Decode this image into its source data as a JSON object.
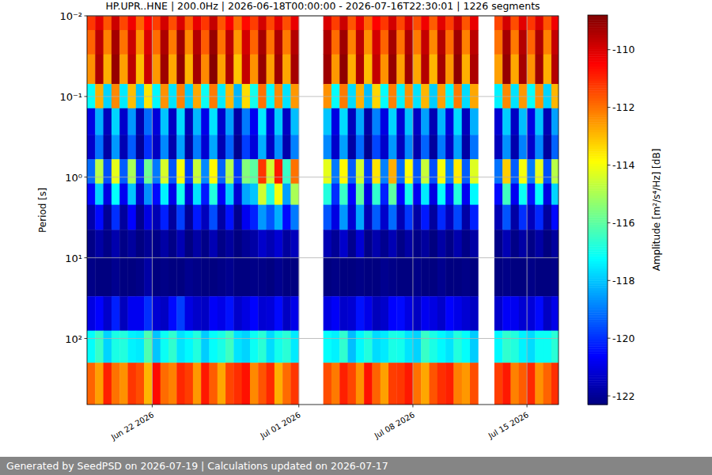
{
  "chart_data": {
    "type": "heatmap",
    "title": "HP.UPR..HNE | 200.0Hz | 2026-06-18T00:00:00 - 2026-07-16T22:30:01 | 1226 segments",
    "ylabel": "Period [s]",
    "log": "y",
    "grid": true,
    "xlim": [
      "2026-06-18T00:00:00",
      "2026-07-16T22:30:01"
    ],
    "xticks": [
      {
        "value": "2026-06-22T00:00:00",
        "label": "Jun 22 2026"
      },
      {
        "value": "2026-07-01T00:00:00",
        "label": "Jul 01 2026"
      },
      {
        "value": "2026-07-08T00:00:00",
        "label": "Jul 08 2026"
      },
      {
        "value": "2026-07-15T00:00:00",
        "label": "Jul 15 2026"
      }
    ],
    "ylim": [
      0.01,
      660
    ],
    "yticks": [
      {
        "value": 0.01,
        "label": "10⁻²"
      },
      {
        "value": 0.1,
        "label": "10⁻¹"
      },
      {
        "value": 1,
        "label": "10⁰"
      },
      {
        "value": 10,
        "label": "10¹"
      },
      {
        "value": 100,
        "label": "10²"
      }
    ],
    "x_edges": [
      "2026-06-18T00:00:00",
      "2026-06-18T12:00:00",
      "2026-06-19T00:00:00",
      "2026-06-19T12:00:00",
      "2026-06-20T00:00:00",
      "2026-06-20T12:00:00",
      "2026-06-21T00:00:00",
      "2026-06-21T12:00:00",
      "2026-06-22T00:00:00",
      "2026-06-22T12:00:00",
      "2026-06-23T00:00:00",
      "2026-06-23T12:00:00",
      "2026-06-24T00:00:00",
      "2026-06-24T12:00:00",
      "2026-06-25T00:00:00",
      "2026-06-25T12:00:00",
      "2026-06-26T00:00:00",
      "2026-06-26T12:00:00",
      "2026-06-27T00:00:00",
      "2026-06-27T12:00:00",
      "2026-06-28T00:00:00",
      "2026-06-28T12:00:00",
      "2026-06-29T00:00:00",
      "2026-06-29T12:00:00",
      "2026-06-30T00:00:00",
      "2026-06-30T12:00:00",
      "2026-07-01T00:00:00",
      "2026-07-01T12:00:00",
      "2026-07-02T00:00:00",
      "2026-07-02T12:00:00",
      "2026-07-03T00:00:00",
      "2026-07-03T12:00:00",
      "2026-07-04T00:00:00",
      "2026-07-04T12:00:00",
      "2026-07-05T00:00:00",
      "2026-07-05T12:00:00",
      "2026-07-06T00:00:00",
      "2026-07-06T12:00:00",
      "2026-07-07T00:00:00",
      "2026-07-07T12:00:00",
      "2026-07-08T00:00:00",
      "2026-07-08T12:00:00",
      "2026-07-09T00:00:00",
      "2026-07-09T12:00:00",
      "2026-07-10T00:00:00",
      "2026-07-10T12:00:00",
      "2026-07-11T00:00:00",
      "2026-07-11T12:00:00",
      "2026-07-12T00:00:00",
      "2026-07-12T12:00:00",
      "2026-07-13T00:00:00",
      "2026-07-13T12:00:00",
      "2026-07-14T00:00:00",
      "2026-07-14T12:00:00",
      "2026-07-15T00:00:00",
      "2026-07-15T12:00:00",
      "2026-07-16T00:00:00",
      "2026-07-16T12:00:00",
      "2026-07-17T00:00:00"
    ],
    "y_edges": [
      0.01,
      0.015,
      0.03,
      0.07,
      0.14,
      0.3,
      0.6,
      1.2,
      2.2,
      4.5,
      10,
      30,
      80,
      200,
      660
    ],
    "cells": [
      [
        -111.2,
        -110.1,
        -111.6,
        -109.8,
        -111.4,
        -110.3,
        -111.8,
        -110.5,
        -111.3,
        -109.9,
        -111.5,
        -110.0,
        -111.7,
        -110.2,
        -111.2,
        -109.7,
        -111.6,
        -110.4,
        -111.9,
        -110.6,
        -111.3,
        -109.9,
        -111.4,
        -110.1,
        -111.5,
        -110.2,
        null,
        null,
        null,
        -110.0,
        -111.3,
        -109.8,
        -111.6,
        -110.2,
        -111.8,
        -110.5,
        -111.2,
        -109.9,
        -111.4,
        -110.0,
        -111.5,
        -110.3,
        -111.7,
        -110.1,
        -111.3,
        -109.8,
        -111.6,
        -110.2,
        null,
        null,
        -111.4,
        -109.9,
        -111.5,
        -110.1,
        -111.2,
        -110.0,
        -111.6,
        -110.3
      ],
      [
        -111.8,
        -109.6,
        -112.2,
        -109.3,
        -112.0,
        -109.8,
        -112.4,
        -110.0,
        -111.9,
        -109.4,
        -112.1,
        -109.2,
        -112.3,
        -109.5,
        -111.7,
        -109.1,
        -112.0,
        -109.6,
        -112.5,
        -109.9,
        -111.8,
        -109.3,
        -112.0,
        -109.4,
        -112.1,
        -109.5,
        null,
        null,
        null,
        -109.4,
        -111.9,
        -109.2,
        -112.2,
        -109.6,
        -112.4,
        -109.9,
        -111.8,
        -109.3,
        -112.0,
        -109.4,
        -112.1,
        -109.7,
        -112.3,
        -109.5,
        -111.9,
        -109.2,
        -112.2,
        -109.6,
        null,
        null,
        -112.0,
        -109.3,
        -112.1,
        -109.5,
        -111.8,
        -109.4,
        -112.2,
        -109.7
      ],
      [
        -112.4,
        -109.4,
        -112.8,
        -109.1,
        -112.6,
        -109.6,
        -113.0,
        -109.8,
        -112.5,
        -109.2,
        -112.7,
        -109.0,
        -112.9,
        -109.3,
        -112.3,
        -108.9,
        -112.6,
        -109.4,
        -113.1,
        -109.7,
        -112.4,
        -109.1,
        -112.6,
        -109.2,
        -112.7,
        -109.3,
        null,
        null,
        null,
        -109.2,
        -112.5,
        -109.0,
        -112.8,
        -109.4,
        -113.0,
        -109.7,
        -112.4,
        -109.1,
        -112.6,
        -109.2,
        -112.7,
        -109.5,
        -112.9,
        -109.3,
        -112.5,
        -109.0,
        -112.8,
        -109.4,
        null,
        null,
        -112.6,
        -109.1,
        -112.7,
        -109.3,
        -112.4,
        -109.2,
        -112.8,
        -109.5
      ],
      [
        -117.2,
        -112.8,
        -117.8,
        -112.3,
        -117.5,
        -113.0,
        -118.0,
        -113.5,
        -117.3,
        -112.4,
        -117.6,
        -112.2,
        -117.9,
        -112.7,
        -117.1,
        -112.1,
        -117.5,
        -112.9,
        -118.2,
        -113.4,
        -117.0,
        -112.0,
        -117.3,
        -112.3,
        -117.6,
        -112.5,
        null,
        null,
        null,
        -112.4,
        -117.2,
        -112.1,
        -117.7,
        -112.8,
        -118.1,
        -113.3,
        -117.2,
        -112.2,
        -117.4,
        -112.4,
        -117.6,
        -112.9,
        -117.9,
        -112.6,
        -117.3,
        -112.1,
        -117.7,
        -112.7,
        null,
        null,
        -117.4,
        -112.3,
        -117.6,
        -112.5,
        -117.2,
        -112.4,
        -117.8,
        -112.9
      ],
      [
        -121.0,
        -118.3,
        -121.5,
        -117.8,
        -121.3,
        -118.6,
        -121.7,
        -119.2,
        -121.1,
        -118.0,
        -121.4,
        -117.7,
        -121.6,
        -118.2,
        -120.9,
        -117.6,
        -121.3,
        -118.5,
        -121.8,
        -119.0,
        -120.8,
        -117.5,
        -121.1,
        -117.9,
        -121.4,
        -118.1,
        null,
        null,
        null,
        -118.0,
        -121.0,
        -117.7,
        -121.5,
        -118.4,
        -121.8,
        -118.9,
        -121.0,
        -117.8,
        -121.2,
        -118.0,
        -121.4,
        -118.5,
        -121.6,
        -118.2,
        -121.1,
        -117.7,
        -121.5,
        -118.3,
        null,
        null,
        -121.2,
        -117.9,
        -121.4,
        -118.1,
        -121.0,
        -118.0,
        -121.6,
        -118.5
      ],
      [
        -121.3,
        -119.1,
        -121.8,
        -118.6,
        -121.6,
        -119.4,
        -122.0,
        -120.0,
        -121.4,
        -118.8,
        -121.7,
        -118.5,
        -121.9,
        -119.0,
        -121.2,
        -118.4,
        -121.6,
        -119.3,
        -122.1,
        -119.8,
        -121.1,
        -118.3,
        -121.4,
        -118.7,
        -121.7,
        -118.9,
        null,
        null,
        null,
        -118.8,
        -121.3,
        -118.5,
        -121.8,
        -119.2,
        -122.1,
        -119.7,
        -121.3,
        -118.6,
        -121.5,
        -118.8,
        -121.7,
        -119.3,
        -121.9,
        -119.0,
        -121.4,
        -118.5,
        -121.8,
        -119.1,
        null,
        null,
        -121.5,
        -118.7,
        -121.7,
        -118.9,
        -121.3,
        -118.8,
        -121.9,
        -119.3
      ],
      [
        -119.2,
        -114.8,
        -119.6,
        -114.2,
        -119.4,
        -115.0,
        -120.0,
        -115.8,
        -119.0,
        -114.4,
        -119.5,
        -114.0,
        -119.8,
        -114.6,
        -118.8,
        -113.8,
        -119.3,
        -114.9,
        -119.9,
        -115.5,
        -116.0,
        -111.2,
        -114.5,
        -110.8,
        -116.5,
        -112.0,
        null,
        null,
        null,
        -114.2,
        -119.0,
        -113.8,
        -119.4,
        -114.5,
        -119.8,
        -113.5,
        -118.9,
        -112.8,
        -119.2,
        -113.9,
        -119.5,
        -114.6,
        -119.6,
        -114.0,
        -119.0,
        -113.6,
        -119.4,
        -114.3,
        null,
        null,
        -119.1,
        -113.2,
        -119.4,
        -114.0,
        -119.0,
        -114.2,
        -119.6,
        -114.8
      ],
      [
        -120.6,
        -117.8,
        -121.0,
        -117.2,
        -120.8,
        -118.0,
        -121.3,
        -118.7,
        -120.5,
        -117.4,
        -120.9,
        -117.0,
        -121.1,
        -117.6,
        -120.3,
        -116.8,
        -120.7,
        -117.9,
        -121.2,
        -118.4,
        -118.0,
        -114.5,
        -116.8,
        -114.0,
        -118.5,
        -115.0,
        null,
        null,
        null,
        -116.8,
        -120.0,
        -116.5,
        -120.6,
        -116.0,
        -121.0,
        -116.6,
        -120.2,
        -116.0,
        -120.6,
        -117.0,
        -120.8,
        -117.5,
        -121.0,
        -117.2,
        -120.4,
        -116.8,
        -120.8,
        -117.3,
        null,
        null,
        -120.5,
        -116.4,
        -120.8,
        -117.1,
        -120.4,
        -117.2,
        -121.0,
        -117.8
      ],
      [
        -121.7,
        -120.5,
        -122.0,
        -120.0,
        -121.9,
        -120.6,
        -122.1,
        -121.0,
        -121.6,
        -120.2,
        -121.9,
        -119.8,
        -122.0,
        -120.3,
        -121.5,
        -119.6,
        -121.8,
        -120.4,
        -122.1,
        -120.8,
        -120.2,
        -118.6,
        -119.5,
        -118.3,
        -120.5,
        -119.0,
        null,
        null,
        null,
        -119.5,
        -121.0,
        -118.6,
        -121.2,
        -118.4,
        -121.6,
        -119.4,
        -121.3,
        -119.2,
        -121.6,
        -119.9,
        -121.8,
        -120.3,
        -121.9,
        -120.1,
        -121.5,
        -119.7,
        -121.8,
        -120.2,
        null,
        null,
        -121.6,
        -119.5,
        -121.8,
        -120.0,
        -121.5,
        -120.1,
        -121.9,
        -120.5
      ],
      [
        -122.2,
        -121.8,
        -122.2,
        -121.7,
        -122.2,
        -121.9,
        -122.3,
        -122.0,
        -122.2,
        -121.8,
        -122.2,
        -121.6,
        -122.3,
        -121.8,
        -122.2,
        -121.6,
        -122.2,
        -121.9,
        -122.3,
        -122.0,
        -121.8,
        -121.3,
        -121.6,
        -121.2,
        -121.9,
        -121.5,
        null,
        null,
        null,
        -121.6,
        -122.0,
        -121.3,
        -122.1,
        -121.2,
        -122.2,
        -121.7,
        -122.1,
        -121.6,
        -122.2,
        -121.8,
        -122.2,
        -121.9,
        -122.3,
        -121.8,
        -122.2,
        -121.7,
        -122.2,
        -121.8,
        null,
        null,
        -122.2,
        -121.6,
        -122.2,
        -121.8,
        -122.2,
        -121.8,
        -122.3,
        -121.9
      ],
      [
        -122.2,
        -122.3,
        -122.3,
        -122.1,
        -122.3,
        -122.3,
        -122.2,
        -121.8,
        -122.3,
        -122.2,
        -122.3,
        -122.3,
        -122.1,
        -122.2,
        -122.3,
        -122.3,
        -122.2,
        -122.1,
        -122.3,
        -122.3,
        -122.2,
        -122.2,
        -122.3,
        -122.1,
        -122.3,
        -122.3,
        null,
        null,
        null,
        -122.3,
        -122.2,
        -122.3,
        -122.3,
        -122.2,
        -122.3,
        -122.3,
        -122.1,
        -122.2,
        -122.3,
        -122.3,
        -122.2,
        -122.3,
        -122.3,
        -122.1,
        -122.3,
        -122.3,
        -122.2,
        -122.3,
        null,
        null,
        -122.3,
        -122.2,
        -122.3,
        -122.3,
        -122.2,
        -122.3,
        -122.3,
        -122.2
      ],
      [
        -121.0,
        -120.6,
        -121.3,
        -120.2,
        -121.5,
        -120.8,
        -120.8,
        -120.0,
        -121.2,
        -121.4,
        -120.5,
        -119.8,
        -121.0,
        -121.3,
        -121.4,
        -120.7,
        -120.9,
        -120.4,
        -121.3,
        -121.0,
        -120.6,
        -121.2,
        -121.1,
        -120.5,
        -121.4,
        -120.9,
        null,
        null,
        null,
        -121.0,
        -120.7,
        -121.3,
        -121.2,
        -120.4,
        -120.9,
        -121.5,
        -121.3,
        -120.6,
        -120.5,
        -121.0,
        -121.4,
        -120.8,
        -121.0,
        -121.3,
        -120.6,
        -120.9,
        -121.2,
        -121.4,
        null,
        null,
        -121.3,
        -120.7,
        -120.8,
        -121.2,
        -121.1,
        -120.5,
        -121.4,
        -120.9
      ],
      [
        -117.2,
        -116.5,
        -117.8,
        -116.9,
        -116.8,
        -117.4,
        -117.5,
        -116.2,
        -118.0,
        -117.1,
        -116.6,
        -117.6,
        -117.3,
        -116.8,
        -117.9,
        -117.2,
        -116.9,
        -116.4,
        -117.6,
        -117.8,
        -117.1,
        -116.7,
        -117.7,
        -117.0,
        -116.7,
        -117.5,
        null,
        null,
        null,
        -117.2,
        -117.4,
        -116.6,
        -118.1,
        -117.3,
        -116.8,
        -117.7,
        -117.5,
        -116.9,
        -117.0,
        -117.6,
        -117.8,
        -116.5,
        -116.9,
        -117.3,
        -117.6,
        -116.8,
        -117.2,
        -117.9,
        null,
        null,
        -117.3,
        -116.6,
        -116.8,
        -117.4,
        -117.7,
        -117.1,
        -117.1,
        -116.7
      ],
      [
        -111.8,
        -112.6,
        -110.9,
        -112.0,
        -112.4,
        -111.2,
        -111.5,
        -112.9,
        -110.6,
        -111.9,
        -112.2,
        -111.0,
        -111.3,
        -112.5,
        -110.8,
        -111.7,
        -112.7,
        -111.4,
        -111.1,
        -110.7,
        -112.3,
        -111.6,
        -111.0,
        -112.8,
        -111.9,
        -111.2,
        null,
        null,
        null,
        -111.5,
        -112.1,
        -110.9,
        -111.4,
        -112.4,
        -110.7,
        -111.8,
        -112.6,
        -111.3,
        -111.2,
        -110.8,
        -112.0,
        -112.7,
        -111.6,
        -111.1,
        -110.9,
        -112.2,
        -112.5,
        -111.5,
        null,
        null,
        -111.3,
        -110.8,
        -112.2,
        -111.7,
        -111.0,
        -112.4,
        -111.8,
        -111.1
      ]
    ],
    "colorbar": {
      "range": [
        -122.3,
        -108.8
      ],
      "ticks": [
        -122,
        -120,
        -118,
        -116,
        -114,
        -112,
        -110
      ],
      "label": "Amplitude [m²/s⁴/Hz] [dB]"
    }
  },
  "footer": {
    "text": "Generated by SeedPSD on 2026-07-19 | Calculations updated on 2026-07-17"
  }
}
